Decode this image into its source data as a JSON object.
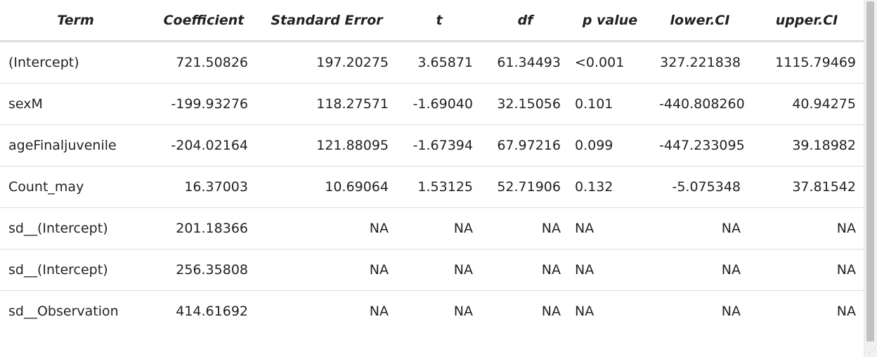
{
  "table": {
    "columns": [
      "Term",
      "Coefficient",
      "Standard Error",
      "t",
      "df",
      "p value",
      "lower.CI",
      "upper.CI"
    ],
    "rows": [
      [
        "(Intercept)",
        "721.50826",
        "197.20275",
        "3.65871",
        "61.34493",
        "<0.001",
        "327.221838",
        "1115.79469"
      ],
      [
        "sexM",
        "-199.93276",
        "118.27571",
        "-1.69040",
        "32.15056",
        "0.101",
        "-440.808260",
        "40.94275"
      ],
      [
        "ageFinaljuvenile",
        "-204.02164",
        "121.88095",
        "-1.67394",
        "67.97216",
        "0.099",
        "-447.233095",
        "39.18982"
      ],
      [
        "Count_may",
        "16.37003",
        "10.69064",
        "1.53125",
        "52.71906",
        "0.132",
        "-5.075348",
        "37.81542"
      ],
      [
        "sd__(Intercept)",
        "201.18366",
        "NA",
        "NA",
        "NA",
        "NA",
        "NA",
        "NA"
      ],
      [
        "sd__(Intercept)",
        "256.35808",
        "NA",
        "NA",
        "NA",
        "NA",
        "NA",
        "NA"
      ],
      [
        "sd__Observation",
        "414.61692",
        "NA",
        "NA",
        "NA",
        "NA",
        "NA",
        "NA"
      ]
    ]
  }
}
